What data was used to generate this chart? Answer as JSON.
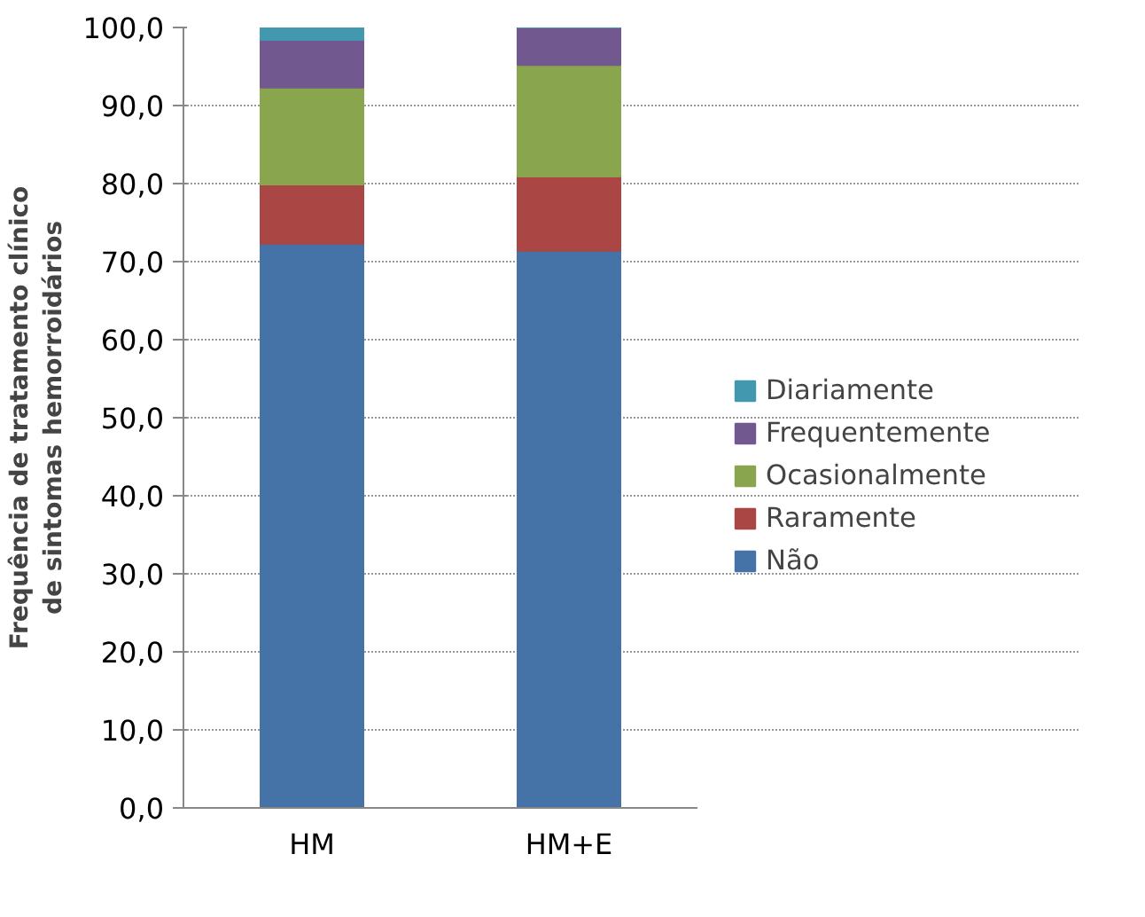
{
  "chart_data": {
    "type": "bar",
    "stacked": true,
    "ylabel": "Frequência de tratamento clínico de sintomas hemorroidários",
    "categories": [
      "HM",
      "HM+E"
    ],
    "series": [
      {
        "name": "Não",
        "color": "#4572a7",
        "values": [
          72.3,
          71.4
        ]
      },
      {
        "name": "Raramente",
        "color": "#aa4643",
        "values": [
          7.6,
          9.5
        ]
      },
      {
        "name": "Ocasionalmente",
        "color": "#89a54e",
        "values": [
          12.4,
          14.3
        ]
      },
      {
        "name": "Frequentemente",
        "color": "#71588f",
        "values": [
          6.1,
          4.8
        ]
      },
      {
        "name": "Diariamente",
        "color": "#4198af",
        "values": [
          1.6,
          0
        ]
      }
    ],
    "ylim": [
      0,
      100
    ],
    "yticks": [
      {
        "value": 0,
        "label": "0,0"
      },
      {
        "value": 10,
        "label": "10,0"
      },
      {
        "value": 20,
        "label": "20,0"
      },
      {
        "value": 30,
        "label": "30,0"
      },
      {
        "value": 40,
        "label": "40,0"
      },
      {
        "value": 50,
        "label": "50,0"
      },
      {
        "value": 60,
        "label": "60,0"
      },
      {
        "value": 70,
        "label": "70,0"
      },
      {
        "value": 80,
        "label": "80,0"
      },
      {
        "value": 90,
        "label": "90,0"
      },
      {
        "value": 100,
        "label": "100,0"
      }
    ],
    "grid": "y",
    "legend": "right"
  }
}
